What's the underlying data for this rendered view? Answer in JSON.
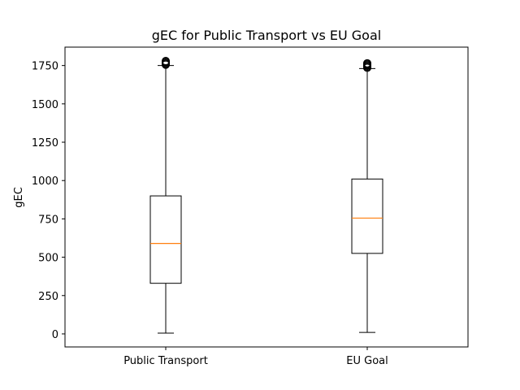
{
  "chart_data": {
    "type": "box",
    "title": "gEC for Public Transport vs EU Goal",
    "xlabel": "",
    "ylabel": "gEC",
    "ylim": [
      -85,
      1870
    ],
    "yticks": [
      0,
      250,
      500,
      750,
      1000,
      1250,
      1500,
      1750
    ],
    "grid": false,
    "categories": [
      "Public Transport",
      "EU Goal"
    ],
    "boxes": [
      {
        "whisker_low": 5,
        "q1": 330,
        "median": 590,
        "q3": 900,
        "whisker_high": 1750,
        "outliers": [
          1755,
          1760,
          1765,
          1770,
          1775,
          1780
        ]
      },
      {
        "whisker_low": 10,
        "q1": 525,
        "median": 755,
        "q3": 1010,
        "whisker_high": 1730,
        "outliers": [
          1735,
          1740,
          1745,
          1750,
          1755,
          1760,
          1765
        ]
      }
    ],
    "colors": {
      "box": "#000000",
      "median": "#ff7f0e",
      "outlier": "#000000"
    }
  }
}
